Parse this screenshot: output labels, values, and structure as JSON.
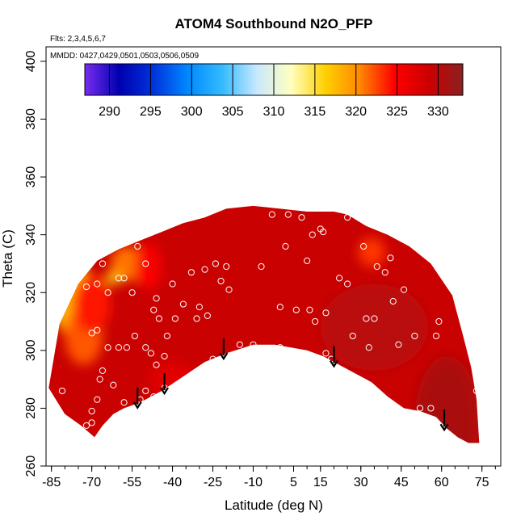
{
  "chart_data": {
    "type": "heatmap",
    "title": "ATOM4 Southbound N2O_PFP",
    "flights_note": "Flts: 2,3,4,5,6,7",
    "dates_note": "MMDD: 0427,0429,0501,0503,0506,0509",
    "xlabel": "Latitude (deg N)",
    "ylabel": "Theta (C)",
    "xlim": [
      -87,
      82
    ],
    "ylim": [
      260,
      405
    ],
    "x_ticks": [
      -85,
      -70,
      -55,
      -40,
      -25,
      -10,
      5,
      15,
      30,
      45,
      60,
      75
    ],
    "x_tick_labels": [
      "-85",
      "-70",
      "-55",
      "-40",
      "-25",
      "-10",
      "5",
      "15",
      "30",
      "45",
      "60",
      "75"
    ],
    "y_ticks": [
      260,
      280,
      300,
      320,
      340,
      360,
      380,
      400
    ],
    "y_tick_labels": [
      "260",
      "280",
      "300",
      "320",
      "340",
      "360",
      "380",
      "400"
    ],
    "colorbar": {
      "range": [
        287,
        333
      ],
      "ticks": [
        290,
        295,
        300,
        305,
        310,
        315,
        320,
        325,
        330
      ],
      "tick_labels": [
        "290",
        "295",
        "300",
        "305",
        "310",
        "315",
        "320",
        "325",
        "330"
      ],
      "colors": [
        "#7a2cf0",
        "#0000b0",
        "#0033dd",
        "#0088ff",
        "#33bbff",
        "#c8e8ff",
        "#ffffc0",
        "#ffd000",
        "#ff8800",
        "#ff0000",
        "#cc0000",
        "#8b2020"
      ]
    },
    "domain_top": [
      [
        -86,
        287
      ],
      [
        -82,
        309
      ],
      [
        -75,
        323
      ],
      [
        -68,
        331
      ],
      [
        -60,
        335
      ],
      [
        -52,
        338
      ],
      [
        -44,
        341
      ],
      [
        -36,
        344
      ],
      [
        -28,
        346
      ],
      [
        -20,
        349
      ],
      [
        -10,
        350
      ],
      [
        0,
        349
      ],
      [
        10,
        348
      ],
      [
        20,
        348
      ],
      [
        25,
        347
      ],
      [
        32,
        343
      ],
      [
        40,
        340
      ],
      [
        48,
        336
      ],
      [
        56,
        330
      ],
      [
        64,
        319
      ],
      [
        68,
        305
      ],
      [
        71,
        294
      ],
      [
        73,
        283
      ],
      [
        74,
        268
      ]
    ],
    "domain_bottom": [
      [
        74,
        268
      ],
      [
        70,
        268
      ],
      [
        66,
        270
      ],
      [
        62,
        273
      ],
      [
        58,
        277
      ],
      [
        52,
        279
      ],
      [
        46,
        280
      ],
      [
        40,
        284
      ],
      [
        34,
        289
      ],
      [
        28,
        292
      ],
      [
        22,
        295
      ],
      [
        16,
        298
      ],
      [
        10,
        300
      ],
      [
        4,
        301
      ],
      [
        -2,
        302
      ],
      [
        -10,
        302
      ],
      [
        -20,
        299
      ],
      [
        -28,
        296
      ],
      [
        -36,
        291
      ],
      [
        -44,
        286
      ],
      [
        -52,
        282
      ],
      [
        -58,
        280
      ],
      [
        -62,
        278
      ],
      [
        -66,
        274
      ],
      [
        -69,
        270
      ],
      [
        -74,
        274
      ],
      [
        -80,
        278
      ],
      [
        -86,
        287
      ]
    ],
    "fields": [
      {
        "x": -77,
        "y": 318,
        "rx": 8,
        "ry": 13,
        "value": 318
      },
      {
        "x": -73,
        "y": 305,
        "rx": 7,
        "ry": 10,
        "value": 322
      },
      {
        "x": -70,
        "y": 316,
        "rx": 7,
        "ry": 10,
        "value": 324
      },
      {
        "x": -57,
        "y": 330,
        "rx": 6,
        "ry": 6,
        "value": 321
      },
      {
        "x": -62,
        "y": 325,
        "rx": 3,
        "ry": 2,
        "value": 316
      },
      {
        "x": -49,
        "y": 329,
        "rx": 5,
        "ry": 8,
        "value": 325
      },
      {
        "x": 34,
        "y": 334,
        "rx": 5,
        "ry": 5,
        "value": 323
      },
      {
        "x": -40,
        "y": 290,
        "rx": 9,
        "ry": 6,
        "value": 327
      },
      {
        "x": 62,
        "y": 276,
        "rx": 12,
        "ry": 22,
        "value": 331
      },
      {
        "x": 35,
        "y": 308,
        "rx": 20,
        "ry": 15,
        "value": 330
      }
    ],
    "points": [
      [
        -81,
        286
      ],
      [
        -70,
        306
      ],
      [
        -68,
        307
      ],
      [
        -72,
        322
      ],
      [
        -68,
        323
      ],
      [
        -66,
        330
      ],
      [
        -60,
        325
      ],
      [
        -58,
        325
      ],
      [
        -55,
        320
      ],
      [
        -54,
        305
      ],
      [
        -64,
        301
      ],
      [
        -60,
        301
      ],
      [
        -57,
        301
      ],
      [
        -50,
        301
      ],
      [
        -48,
        299
      ],
      [
        -46,
        295
      ],
      [
        -43,
        298
      ],
      [
        -42,
        305
      ],
      [
        -39,
        311
      ],
      [
        -36,
        316
      ],
      [
        -31,
        311
      ],
      [
        -30,
        315
      ],
      [
        -33,
        327
      ],
      [
        -28,
        328
      ],
      [
        -24,
        330
      ],
      [
        -22,
        324
      ],
      [
        -20,
        329
      ],
      [
        -19,
        321
      ],
      [
        -15,
        302
      ],
      [
        -27,
        312
      ],
      [
        -40,
        323
      ],
      [
        -46,
        318
      ],
      [
        -47,
        314
      ],
      [
        -45,
        311
      ],
      [
        -50,
        330
      ],
      [
        -53,
        336
      ],
      [
        -64,
        320
      ],
      [
        -66,
        293
      ],
      [
        -67,
        290
      ],
      [
        -62,
        288
      ],
      [
        -68,
        283
      ],
      [
        -70,
        279
      ],
      [
        -70,
        275
      ],
      [
        -72,
        274
      ],
      [
        -58,
        282
      ],
      [
        -52,
        283
      ],
      [
        -50,
        286
      ],
      [
        -47,
        284
      ],
      [
        -43,
        287
      ],
      [
        -33,
        289
      ],
      [
        -26,
        293
      ],
      [
        -25,
        297
      ],
      [
        -7,
        329
      ],
      [
        -3,
        347
      ],
      [
        0,
        315
      ],
      [
        2,
        336
      ],
      [
        3,
        347
      ],
      [
        6,
        314
      ],
      [
        8,
        346
      ],
      [
        10,
        331
      ],
      [
        11,
        314
      ],
      [
        12,
        340
      ],
      [
        13,
        310
      ],
      [
        15,
        342
      ],
      [
        16,
        341
      ],
      [
        17,
        313
      ],
      [
        17,
        299
      ],
      [
        19,
        297
      ],
      [
        22,
        325
      ],
      [
        25,
        346
      ],
      [
        25,
        323
      ],
      [
        27,
        305
      ],
      [
        27,
        291
      ],
      [
        31,
        336
      ],
      [
        32,
        311
      ],
      [
        33,
        301
      ],
      [
        35,
        311
      ],
      [
        36,
        329
      ],
      [
        39,
        327
      ],
      [
        41,
        332
      ],
      [
        42,
        317
      ],
      [
        44,
        302
      ],
      [
        45,
        279
      ],
      [
        46,
        321
      ],
      [
        50,
        305
      ],
      [
        52,
        280
      ],
      [
        56,
        280
      ],
      [
        58,
        305
      ],
      [
        59,
        310
      ],
      [
        60,
        328
      ],
      [
        73,
        286
      ],
      [
        0,
        301
      ],
      [
        -10,
        302
      ]
    ],
    "arrows": [
      -53,
      -43,
      -21,
      20,
      61
    ],
    "arrow_length": 7
  }
}
